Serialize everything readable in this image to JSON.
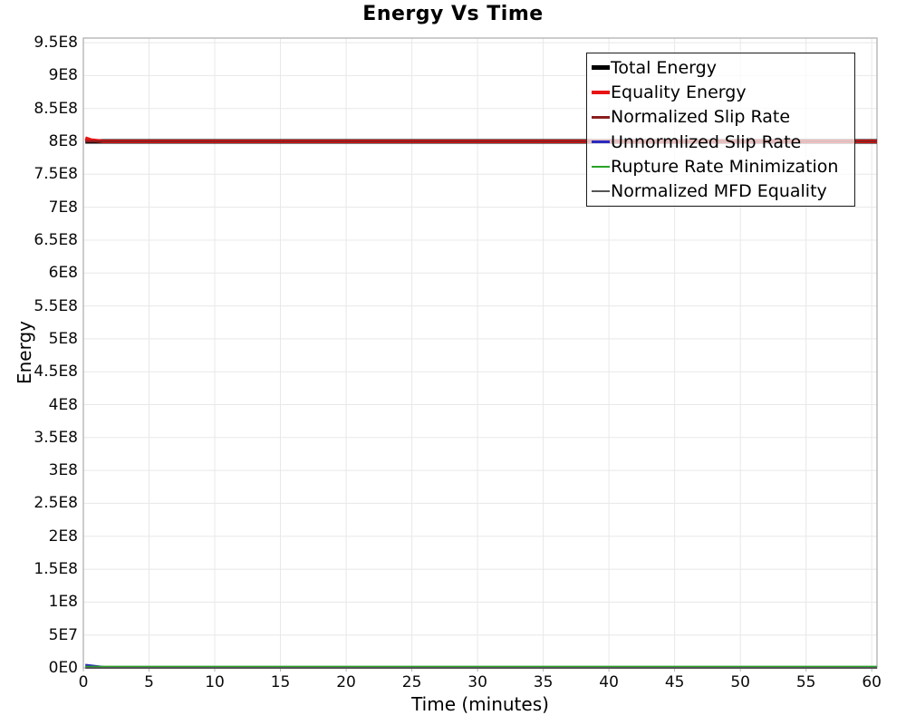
{
  "chart_data": {
    "type": "line",
    "title": "Energy Vs Time",
    "xlabel": "Time (minutes)",
    "ylabel": "Energy",
    "xlim": [
      0,
      60.4
    ],
    "ylim": [
      0,
      957000000
    ],
    "grid": true,
    "legend_position": "top-right",
    "x_ticks": {
      "values": [
        0,
        5,
        10,
        15,
        20,
        25,
        30,
        35,
        40,
        45,
        50,
        55,
        60
      ],
      "labels": [
        "0",
        "5",
        "10",
        "15",
        "20",
        "25",
        "30",
        "35",
        "40",
        "45",
        "50",
        "55",
        "60"
      ]
    },
    "y_ticks": {
      "values": [
        0,
        50000000.0,
        100000000.0,
        150000000.0,
        200000000.0,
        250000000.0,
        300000000.0,
        350000000.0,
        400000000.0,
        450000000.0,
        500000000.0,
        550000000.0,
        600000000.0,
        650000000.0,
        700000000.0,
        750000000.0,
        800000000.0,
        850000000.0,
        900000000.0,
        950000000.0
      ],
      "labels": [
        "0E0",
        "5E7",
        "1E8",
        "1.5E8",
        "2E8",
        "2.5E8",
        "3E8",
        "3.5E8",
        "4E8",
        "4.5E8",
        "5E8",
        "5.5E8",
        "6E8",
        "6.5E8",
        "7E8",
        "7.5E8",
        "8E8",
        "8.5E8",
        "9E8",
        "9.5E8"
      ]
    },
    "series": [
      {
        "name": "Total Energy",
        "color": "#000000",
        "line_width": 5,
        "x": [
          0.15,
          60.4
        ],
        "y": [
          800000000.0,
          800000000.0
        ]
      },
      {
        "name": "Equality Energy",
        "color": "#e81414",
        "line_width": 4,
        "x": [
          0.15,
          0.6,
          1.5,
          60.4
        ],
        "y": [
          805000000.0,
          802000000.0,
          800000000.0,
          800000000.0
        ]
      },
      {
        "name": "Normalized Slip Rate",
        "color": "#8b1e1e",
        "line_width": 2.5,
        "x": [
          0.15,
          60.4
        ],
        "y": [
          800000000.0,
          800000000.0
        ]
      },
      {
        "name": "Unnormlized Slip Rate",
        "color": "#2a2ac0",
        "line_width": 2.5,
        "x": [
          0.15,
          0.6,
          1.7,
          60.4
        ],
        "y": [
          4500000.0,
          3500000.0,
          800000.0,
          800000.0
        ]
      },
      {
        "name": "Rupture Rate Minimization",
        "color": "#27a327",
        "line_width": 2.5,
        "x": [
          0.15,
          60.4
        ],
        "y": [
          1500000.0,
          1500000.0
        ]
      },
      {
        "name": "Normalized MFD Equality",
        "color": "#555555",
        "line_width": 2,
        "x": [
          0.15,
          60.4
        ],
        "y": [
          0,
          0
        ]
      }
    ],
    "colors": {
      "gridline": "#e8e8e8",
      "plot_border": "#ababab",
      "tick_mark": "#b3b3b3",
      "legend_border": "#1c1c1c"
    }
  }
}
